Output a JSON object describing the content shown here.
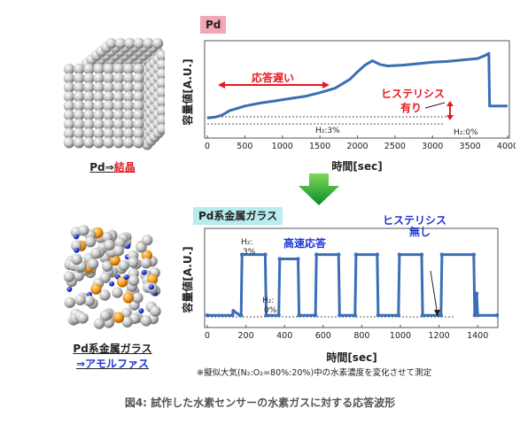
{
  "figure_caption": "図4: 試作した水素センサーの水素ガスに対する応答波形",
  "top": {
    "tag": "Pd",
    "material_label_a": "Pd⇒",
    "material_label_b": "結晶",
    "annot_slow": "応答遅い",
    "annot_hysteresis_1": "ヒステリシス",
    "annot_hysteresis_2": "有り",
    "h2_high": "H₂:3%",
    "h2_low": "H₂:0%"
  },
  "bottom": {
    "tag": "Pd系金属ガラス",
    "material_label_line1": "Pd系金属ガラス",
    "material_label_line2a": "⇒",
    "material_label_line2b": "アモルファス",
    "annot_fast": "高速応答",
    "annot_nohyst_1": "ヒステリシス",
    "annot_nohyst_2": "無し",
    "h2_high_1": "H₂:",
    "h2_high_2": "3%",
    "h2_low_1": "H₂:",
    "h2_low_2": "0%",
    "footnote": "※擬似大気(N₂:O₂=80%:20%)中の水素濃度を変化させて測定"
  },
  "chart_data": [
    {
      "type": "line",
      "title": "Pd",
      "xlabel": "時間[sec]",
      "ylabel": "容量値[A.U.]",
      "xlim": [
        0,
        4000
      ],
      "xticks": [
        0,
        500,
        1000,
        1500,
        2000,
        2500,
        3000,
        3500,
        4000
      ],
      "series": [
        {
          "x": [
            0,
            100,
            200,
            300,
            500,
            700,
            900,
            1100,
            1300,
            1500,
            1700,
            1900,
            2000,
            2100,
            2200,
            2300,
            2400,
            2600,
            2800,
            3000,
            3200,
            3400,
            3600,
            3700,
            3750,
            3760,
            3800,
            4000
          ],
          "y": [
            0.08,
            0.09,
            0.12,
            0.18,
            0.24,
            0.28,
            0.31,
            0.34,
            0.37,
            0.42,
            0.48,
            0.6,
            0.7,
            0.79,
            0.85,
            0.8,
            0.78,
            0.79,
            0.81,
            0.83,
            0.84,
            0.86,
            0.88,
            0.92,
            0.95,
            0.24,
            0.24,
            0.24
          ]
        }
      ]
    },
    {
      "type": "line",
      "title": "Pd系金属ガラス",
      "xlabel": "時間[sec]",
      "ylabel": "容量値[A.U.]",
      "xlim": [
        0,
        1500
      ],
      "xticks": [
        0,
        200,
        400,
        600,
        800,
        1000,
        1200,
        1400
      ],
      "series": [
        {
          "x": [
            0,
            130,
            135,
            170,
            175,
            180,
            300,
            305,
            370,
            375,
            470,
            475,
            560,
            565,
            680,
            685,
            765,
            770,
            880,
            885,
            990,
            995,
            1110,
            1115,
            1210,
            1215,
            1380,
            1385,
            1395,
            1400,
            1500
          ],
          "y": [
            0.1,
            0.1,
            0.15,
            0.1,
            0.1,
            0.8,
            0.8,
            0.1,
            0.1,
            0.75,
            0.75,
            0.1,
            0.1,
            0.8,
            0.8,
            0.1,
            0.1,
            0.8,
            0.8,
            0.1,
            0.1,
            0.8,
            0.8,
            0.1,
            0.1,
            0.8,
            0.8,
            0.1,
            0.35,
            0.1,
            0.1
          ]
        }
      ]
    }
  ]
}
